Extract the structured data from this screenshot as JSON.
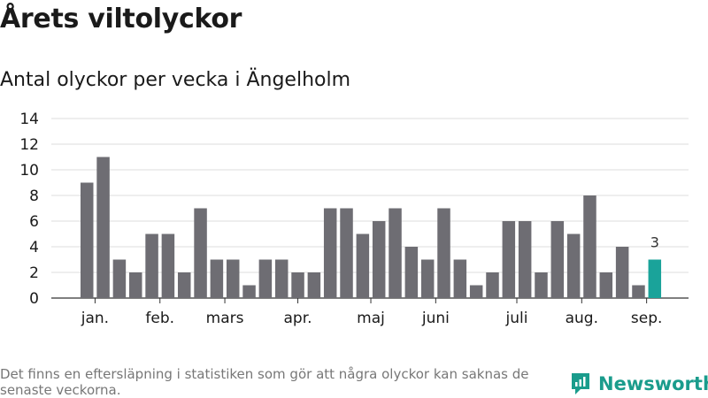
{
  "title": "Årets viltolyckor",
  "subtitle": "Antal olyckor per vecka i Ängelholm",
  "footer_note": "Det finns en eftersläpning i statistiken som gör att några olyckor kan saknas de senaste veckorna.",
  "brand": {
    "name": "Newsworthy",
    "icon": "newsworthy-logo-icon",
    "color": "#1a9c8c"
  },
  "chart_data": {
    "type": "bar",
    "ylim": [
      0,
      14
    ],
    "yticks": [
      0,
      2,
      4,
      6,
      8,
      10,
      12,
      14
    ],
    "grid": true,
    "bar_color": "#6e6d73",
    "highlight_color": "#1aa39a",
    "highlight_index": 35,
    "highlight_label": "3",
    "values": [
      9,
      11,
      3,
      2,
      5,
      5,
      2,
      7,
      3,
      3,
      1,
      3,
      3,
      2,
      2,
      7,
      7,
      5,
      6,
      7,
      4,
      3,
      7,
      3,
      1,
      2,
      6,
      6,
      2,
      6,
      5,
      8,
      2,
      4,
      1,
      3
    ],
    "month_labels": [
      {
        "label": "jan.",
        "at": 0.5
      },
      {
        "label": "feb.",
        "at": 4.5
      },
      {
        "label": "mars",
        "at": 8.5
      },
      {
        "label": "apr.",
        "at": 13.0
      },
      {
        "label": "maj",
        "at": 17.5
      },
      {
        "label": "juni",
        "at": 21.5
      },
      {
        "label": "juli",
        "at": 26.5
      },
      {
        "label": "aug.",
        "at": 30.5
      },
      {
        "label": "sep.",
        "at": 34.5
      }
    ]
  }
}
